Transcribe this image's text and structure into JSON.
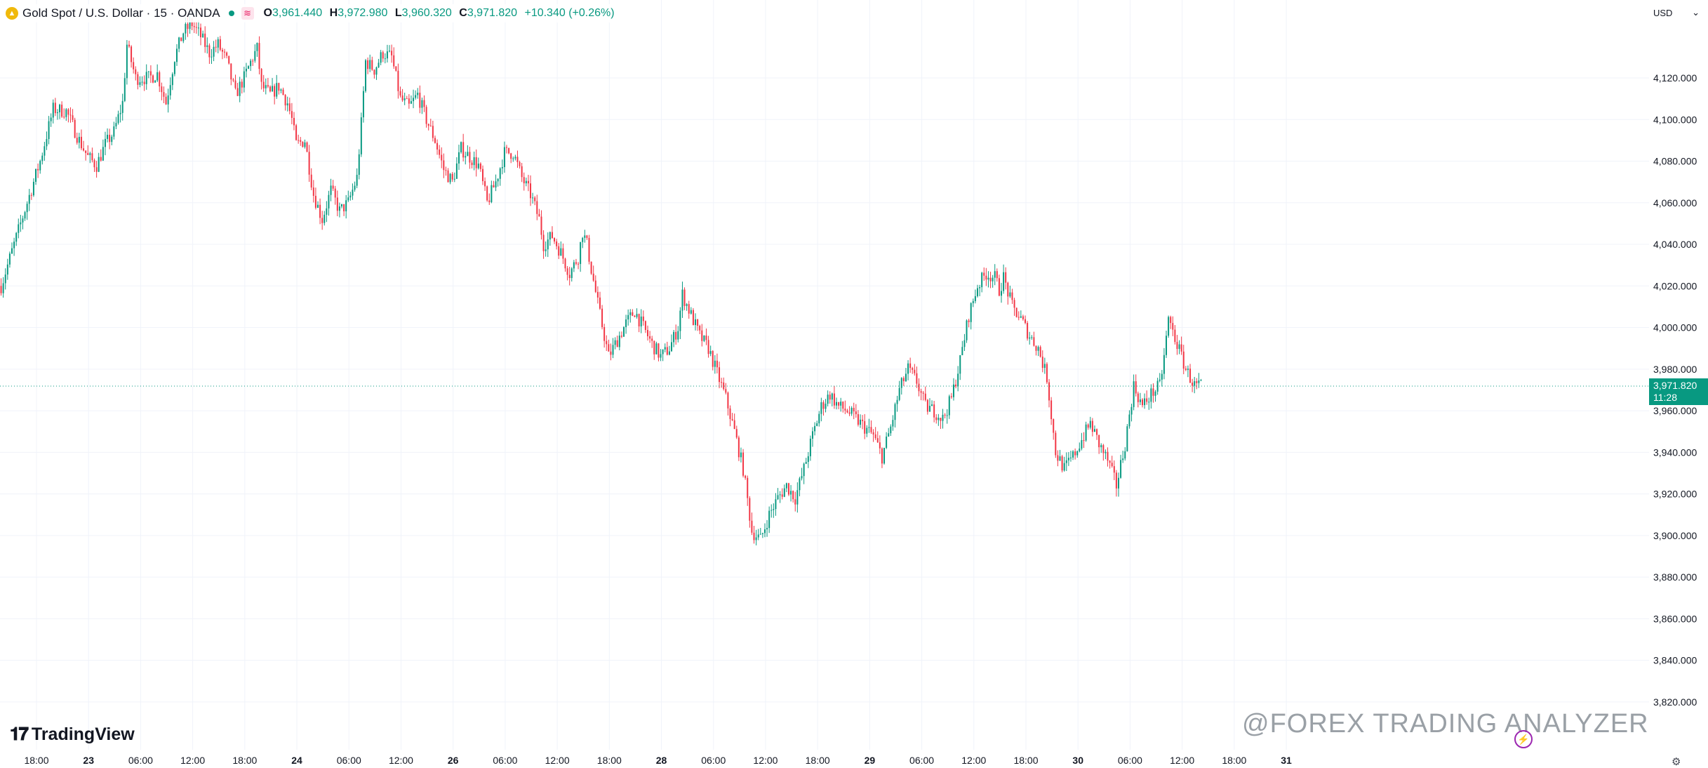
{
  "legend": {
    "symbol_icon": "gold-coin-icon",
    "title": "Gold Spot / U.S. Dollar · 15 · OANDA",
    "flag_icon": "flag-icon",
    "open_key": "O",
    "open": "3,961.440",
    "high_key": "H",
    "high": "3,972.980",
    "low_key": "L",
    "low": "3,960.320",
    "close_key": "C",
    "close": "3,971.820",
    "change": "+10.340 (+0.26%)"
  },
  "currency": {
    "label": "USD",
    "icon": "chevron-down-icon"
  },
  "last_price": {
    "price": "3,971.820",
    "countdown": "11:28"
  },
  "logo": {
    "text": "TradingView"
  },
  "watermark": {
    "text": "@FOREX TRADING ANALYZER"
  },
  "colors": {
    "up": "#089981",
    "down": "#f23645",
    "grid": "#f0f3fa",
    "text": "#131722"
  },
  "chart_data": {
    "type": "candlestick",
    "symbol": "Gold Spot / U.S. Dollar",
    "interval": "15",
    "ylim": [
      3797,
      4146
    ],
    "y_ticks": [
      {
        "value": 3820,
        "label": "3,820.000"
      },
      {
        "value": 3840,
        "label": "3,840.000"
      },
      {
        "value": 3860,
        "label": "3,860.000"
      },
      {
        "value": 3880,
        "label": "3,880.000"
      },
      {
        "value": 3900,
        "label": "3,900.000"
      },
      {
        "value": 3920,
        "label": "3,920.000"
      },
      {
        "value": 3940,
        "label": "3,940.000"
      },
      {
        "value": 3960,
        "label": "3,960.000"
      },
      {
        "value": 3980,
        "label": "3,980.000"
      },
      {
        "value": 4000,
        "label": "4,000.000"
      },
      {
        "value": 4020,
        "label": "4,020.000"
      },
      {
        "value": 4040,
        "label": "4,040.000"
      },
      {
        "value": 4060,
        "label": "4,060.000"
      },
      {
        "value": 4080,
        "label": "4,080.000"
      },
      {
        "value": 4100,
        "label": "4,100.000"
      },
      {
        "value": 4120,
        "label": "4,120.000"
      }
    ],
    "x_ticks": [
      {
        "label": "18:00",
        "bold": false
      },
      {
        "label": "23",
        "bold": true
      },
      {
        "label": "06:00",
        "bold": false
      },
      {
        "label": "12:00",
        "bold": false
      },
      {
        "label": "18:00",
        "bold": false
      },
      {
        "label": "24",
        "bold": true
      },
      {
        "label": "06:00",
        "bold": false
      },
      {
        "label": "12:00",
        "bold": false
      },
      {
        "label": "26",
        "bold": true
      },
      {
        "label": "06:00",
        "bold": false
      },
      {
        "label": "12:00",
        "bold": false
      },
      {
        "label": "18:00",
        "bold": false
      },
      {
        "label": "28",
        "bold": true
      },
      {
        "label": "06:00",
        "bold": false
      },
      {
        "label": "12:00",
        "bold": false
      },
      {
        "label": "18:00",
        "bold": false
      },
      {
        "label": "29",
        "bold": true
      },
      {
        "label": "06:00",
        "bold": false
      },
      {
        "label": "12:00",
        "bold": false
      },
      {
        "label": "18:00",
        "bold": false
      },
      {
        "label": "30",
        "bold": true
      },
      {
        "label": "06:00",
        "bold": false
      },
      {
        "label": "12:00",
        "bold": false
      },
      {
        "label": "18:00",
        "bold": false
      },
      {
        "label": "31",
        "bold": true
      }
    ],
    "price_path": [
      [
        0,
        4020
      ],
      [
        6,
        4040
      ],
      [
        12,
        4060
      ],
      [
        18,
        4080
      ],
      [
        24,
        4105
      ],
      [
        30,
        4104
      ],
      [
        36,
        4090
      ],
      [
        40,
        4082
      ],
      [
        44,
        4078
      ],
      [
        48,
        4088
      ],
      [
        52,
        4094
      ],
      [
        56,
        4108
      ],
      [
        58,
        4136
      ],
      [
        62,
        4120
      ],
      [
        68,
        4120
      ],
      [
        72,
        4122
      ],
      [
        76,
        4108
      ],
      [
        80,
        4130
      ],
      [
        84,
        4142
      ],
      [
        88,
        4146
      ],
      [
        92,
        4140
      ],
      [
        96,
        4132
      ],
      [
        100,
        4136
      ],
      [
        104,
        4128
      ],
      [
        108,
        4112
      ],
      [
        112,
        4120
      ],
      [
        116,
        4130
      ],
      [
        118,
        4134
      ],
      [
        120,
        4116
      ],
      [
        124,
        4112
      ],
      [
        128,
        4116
      ],
      [
        132,
        4108
      ],
      [
        134,
        4100
      ],
      [
        136,
        4088
      ],
      [
        140,
        4090
      ],
      [
        144,
        4064
      ],
      [
        148,
        4052
      ],
      [
        152,
        4066
      ],
      [
        156,
        4056
      ],
      [
        160,
        4060
      ],
      [
        164,
        4072
      ],
      [
        166,
        4098
      ],
      [
        168,
        4128
      ],
      [
        172,
        4124
      ],
      [
        176,
        4132
      ],
      [
        180,
        4130
      ],
      [
        184,
        4110
      ],
      [
        188,
        4106
      ],
      [
        192,
        4112
      ],
      [
        196,
        4100
      ],
      [
        200,
        4090
      ],
      [
        204,
        4076
      ],
      [
        208,
        4070
      ],
      [
        212,
        4086
      ],
      [
        216,
        4082
      ],
      [
        220,
        4078
      ],
      [
        224,
        4060
      ],
      [
        228,
        4070
      ],
      [
        232,
        4084
      ],
      [
        236,
        4084
      ],
      [
        240,
        4072
      ],
      [
        244,
        4064
      ],
      [
        248,
        4052
      ],
      [
        250,
        4040
      ],
      [
        254,
        4044
      ],
      [
        258,
        4036
      ],
      [
        262,
        4026
      ],
      [
        266,
        4034
      ],
      [
        268,
        4046
      ],
      [
        270,
        4040
      ],
      [
        272,
        4028
      ],
      [
        276,
        4006
      ],
      [
        280,
        3986
      ],
      [
        284,
        3994
      ],
      [
        288,
        4002
      ],
      [
        292,
        4008
      ],
      [
        296,
        4000
      ],
      [
        300,
        3992
      ],
      [
        304,
        3986
      ],
      [
        308,
        3990
      ],
      [
        312,
        4000
      ],
      [
        314,
        4016
      ],
      [
        318,
        4006
      ],
      [
        322,
        3996
      ],
      [
        326,
        3990
      ],
      [
        330,
        3978
      ],
      [
        334,
        3966
      ],
      [
        338,
        3950
      ],
      [
        342,
        3932
      ],
      [
        346,
        3902
      ],
      [
        350,
        3898
      ],
      [
        354,
        3910
      ],
      [
        358,
        3918
      ],
      [
        362,
        3924
      ],
      [
        366,
        3918
      ],
      [
        370,
        3932
      ],
      [
        374,
        3948
      ],
      [
        378,
        3962
      ],
      [
        382,
        3968
      ],
      [
        386,
        3962
      ],
      [
        390,
        3960
      ],
      [
        394,
        3956
      ],
      [
        398,
        3952
      ],
      [
        402,
        3948
      ],
      [
        406,
        3938
      ],
      [
        410,
        3952
      ],
      [
        414,
        3970
      ],
      [
        418,
        3980
      ],
      [
        422,
        3974
      ],
      [
        426,
        3962
      ],
      [
        430,
        3960
      ],
      [
        434,
        3956
      ],
      [
        438,
        3966
      ],
      [
        442,
        3984
      ],
      [
        446,
        4006
      ],
      [
        450,
        4020
      ],
      [
        454,
        4026
      ],
      [
        458,
        4024
      ],
      [
        460,
        4018
      ],
      [
        462,
        4024
      ],
      [
        466,
        4010
      ],
      [
        470,
        4004
      ],
      [
        474,
        3996
      ],
      [
        478,
        3990
      ],
      [
        482,
        3976
      ],
      [
        486,
        3940
      ],
      [
        490,
        3932
      ],
      [
        494,
        3938
      ],
      [
        498,
        3946
      ],
      [
        502,
        3954
      ],
      [
        506,
        3944
      ],
      [
        510,
        3936
      ],
      [
        514,
        3924
      ],
      [
        518,
        3944
      ],
      [
        522,
        3972
      ],
      [
        526,
        3962
      ],
      [
        530,
        3968
      ],
      [
        534,
        3972
      ],
      [
        536,
        3986
      ],
      [
        538,
        4004
      ],
      [
        542,
        3992
      ],
      [
        546,
        3980
      ],
      [
        550,
        3972
      ],
      [
        553,
        3972
      ]
    ]
  }
}
